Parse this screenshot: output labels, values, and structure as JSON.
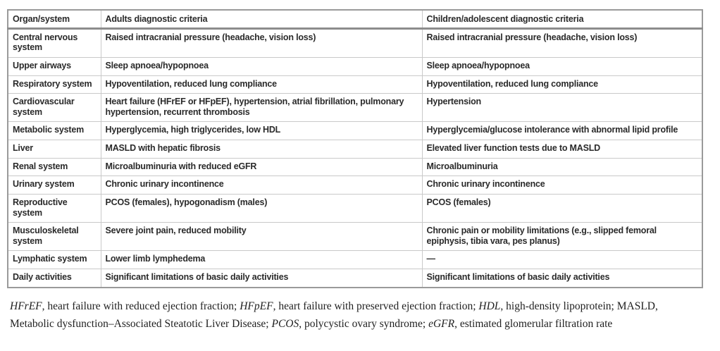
{
  "table": {
    "headers": {
      "organ": "Organ/system",
      "adults": "Adults diagnostic criteria",
      "children": "Children/adolescent diagnostic criteria"
    },
    "rows": [
      {
        "organ": "Central nervous system",
        "adults": "Raised intracranial pressure (headache, vision loss)",
        "children": "Raised intracranial pressure (headache, vision loss)"
      },
      {
        "organ": "Upper airways",
        "adults": "Sleep apnoea/hypopnoea",
        "children": "Sleep apnoea/hypopnoea"
      },
      {
        "organ": "Respiratory system",
        "adults": "Hypoventilation, reduced lung compliance",
        "children": "Hypoventilation, reduced lung compliance"
      },
      {
        "organ": "Cardiovascular system",
        "adults": "Heart failure (HFrEF or HFpEF), hypertension, atrial fibrillation, pulmonary hypertension, recurrent thrombosis",
        "children": "Hypertension"
      },
      {
        "organ": "Metabolic system",
        "adults": "Hyperglycemia, high triglycerides, low HDL",
        "children": "Hyperglycemia/glucose intolerance with abnormal lipid profile"
      },
      {
        "organ": "Liver",
        "adults": "MASLD with hepatic fibrosis",
        "children": "Elevated liver function tests due to MASLD"
      },
      {
        "organ": "Renal system",
        "adults": "Microalbuminuria with reduced eGFR",
        "children": "Microalbuminuria"
      },
      {
        "organ": "Urinary system",
        "adults": "Chronic urinary incontinence",
        "children": "Chronic urinary incontinence"
      },
      {
        "organ": "Reproductive system",
        "adults": "PCOS (females), hypogonadism (males)",
        "children": "PCOS (females)"
      },
      {
        "organ": "Musculoskeletal system",
        "adults": "Severe joint pain, reduced mobility",
        "children": "Chronic pain or mobility limitations (e.g., slipped femoral epiphysis, tibia vara, pes planus)"
      },
      {
        "organ": "Lymphatic system",
        "adults": "Lower limb lymphedema",
        "children": "—"
      },
      {
        "organ": "Daily activities",
        "adults": "Significant limitations of basic daily activities",
        "children": "Significant limitations of basic daily activities"
      }
    ]
  },
  "footnote": {
    "segments": [
      {
        "text": "HFrEF",
        "italic": true
      },
      {
        "text": ", heart failure with reduced ejection fraction; ",
        "italic": false
      },
      {
        "text": "HFpEF",
        "italic": true
      },
      {
        "text": ", heart failure with preserved ejection fraction; ",
        "italic": false
      },
      {
        "text": "HDL",
        "italic": true
      },
      {
        "text": ", high-density lipoprotein; ",
        "italic": false
      },
      {
        "text": "MASLD, Metabolic dysfunction–Associated Steatotic Liver Disease; ",
        "italic": false
      },
      {
        "text": "PCOS",
        "italic": true
      },
      {
        "text": ", polycystic ovary syndrome; ",
        "italic": false
      },
      {
        "text": "eGFR",
        "italic": true
      },
      {
        "text": ", estimated glomerular filtration rate",
        "italic": false
      }
    ]
  },
  "colors": {
    "table_outer_border": "#9a9a9a",
    "header_rule": "#8c8c8c",
    "inner_grid": "#c9c9c9",
    "table_text": "#2a2a2a",
    "footnote_text": "#1f1f1f",
    "background": "#ffffff"
  }
}
